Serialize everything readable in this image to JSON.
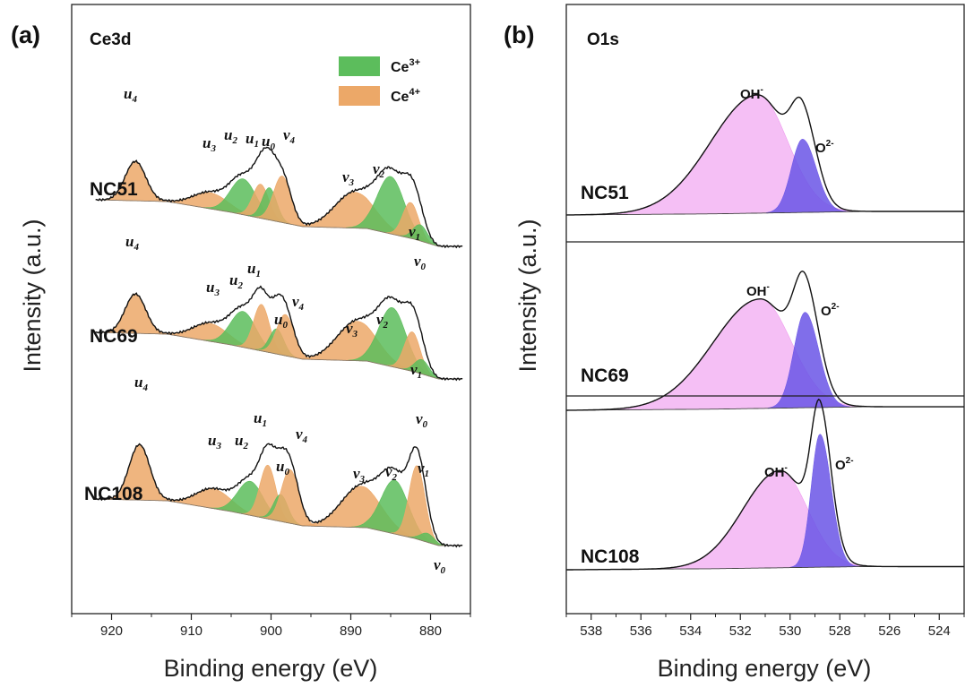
{
  "colors": {
    "ce3": "#5cbd5c",
    "ce4": "#eca868",
    "oh": "#ec8aec",
    "o2": "#6a55e6",
    "envelope": "#111111"
  },
  "chart_data": [
    {
      "type": "area",
      "panel_letter": "(a)",
      "title": "Ce3d",
      "xlabel": "Binding energy (eV)",
      "ylabel": "Intensity (a.u.)",
      "xlim": [
        925,
        875
      ],
      "x_reversed": true,
      "xticks": [
        "920",
        "910",
        "900",
        "890",
        "880"
      ],
      "xtick_values": [
        920,
        910,
        900,
        890,
        880
      ],
      "grid": false,
      "legend": {
        "position": "top-right",
        "entries": [
          {
            "label": "Ce",
            "sup": "3+",
            "color_key": "ce3"
          },
          {
            "label": "Ce",
            "sup": "4+",
            "color_key": "ce4"
          }
        ]
      },
      "spectra": [
        {
          "name": "NC51",
          "offset": 100,
          "background": [
            [
              922,
              2
            ],
            [
              913,
              0
            ],
            [
              905,
              -12
            ],
            [
              896,
              -28
            ],
            [
              888,
              -30
            ],
            [
              882,
              -42
            ],
            [
              879,
              -50
            ],
            [
              876,
              -50
            ]
          ],
          "components": [
            {
              "label": "u4",
              "species": "ce4",
              "center": 917,
              "height": 44,
              "width": 1.3
            },
            {
              "label": "u3",
              "species": "ce4",
              "center": 907.6,
              "height": 18,
              "width": 2.2
            },
            {
              "label": "u2",
              "species": "ce3",
              "center": 903.5,
              "height": 40,
              "width": 1.6
            },
            {
              "label": "u1",
              "species": "ce4",
              "center": 901.3,
              "height": 38,
              "width": 1.0
            },
            {
              "label": "u0",
              "species": "ce3",
              "center": 900.2,
              "height": 36,
              "width": 0.9
            },
            {
              "label": "v4",
              "species": "ce4",
              "center": 898.6,
              "height": 52,
              "width": 1.1
            },
            {
              "label": "v3",
              "species": "ce4",
              "center": 889.5,
              "height": 40,
              "width": 2.5
            },
            {
              "label": "v2",
              "species": "ce3",
              "center": 885.0,
              "height": 64,
              "width": 1.7
            },
            {
              "label": "v1",
              "species": "ce4",
              "center": 882.5,
              "height": 40,
              "width": 1.0
            },
            {
              "label": "v0",
              "species": "ce3",
              "center": 881.3,
              "height": 18,
              "width": 0.9
            }
          ]
        },
        {
          "name": "NC69",
          "offset": 0,
          "background": [
            [
              922,
              2
            ],
            [
              913,
              0
            ],
            [
              905,
              -12
            ],
            [
              896,
              -28
            ],
            [
              888,
              -30
            ],
            [
              882,
              -42
            ],
            [
              879,
              -50
            ],
            [
              876,
              -50
            ]
          ],
          "components": [
            {
              "label": "u4",
              "species": "ce4",
              "center": 917,
              "height": 44,
              "width": 1.3
            },
            {
              "label": "u3",
              "species": "ce4",
              "center": 907.6,
              "height": 20,
              "width": 2.2
            },
            {
              "label": "u2",
              "species": "ce3",
              "center": 903.5,
              "height": 40,
              "width": 1.6
            },
            {
              "label": "u1",
              "species": "ce4",
              "center": 901.2,
              "height": 52,
              "width": 1.0
            },
            {
              "label": "u0",
              "species": "ce3",
              "center": 899.3,
              "height": 28,
              "width": 0.9
            },
            {
              "label": "v4",
              "species": "ce4",
              "center": 898.2,
              "height": 46,
              "width": 1.1
            },
            {
              "label": "v3",
              "species": "ce4",
              "center": 889.2,
              "height": 44,
              "width": 2.5
            },
            {
              "label": "v2",
              "species": "ce3",
              "center": 884.8,
              "height": 66,
              "width": 1.7
            },
            {
              "label": "v1",
              "species": "ce4",
              "center": 882.3,
              "height": 44,
              "width": 1.0
            },
            {
              "label": "v0",
              "species": "ce3",
              "center": 881.1,
              "height": 16,
              "width": 0.9
            }
          ]
        },
        {
          "name": "NC108",
          "offset": -100,
          "background": [
            [
              922,
              2
            ],
            [
              913,
              0
            ],
            [
              905,
              -12
            ],
            [
              896,
              -28
            ],
            [
              888,
              -30
            ],
            [
              882,
              -42
            ],
            [
              879,
              -50
            ],
            [
              876,
              -50
            ]
          ],
          "components": [
            {
              "label": "u4",
              "species": "ce4",
              "center": 916.5,
              "height": 62,
              "width": 1.3
            },
            {
              "label": "u3",
              "species": "ce4",
              "center": 907.2,
              "height": 22,
              "width": 2.2
            },
            {
              "label": "u2",
              "species": "ce3",
              "center": 902.6,
              "height": 38,
              "width": 1.6
            },
            {
              "label": "u1",
              "species": "ce4",
              "center": 900.4,
              "height": 60,
              "width": 1.0
            },
            {
              "label": "u0",
              "species": "ce3",
              "center": 898.8,
              "height": 30,
              "width": 0.9
            },
            {
              "label": "v4",
              "species": "ce4",
              "center": 897.6,
              "height": 60,
              "width": 1.1
            },
            {
              "label": "v3",
              "species": "ce4",
              "center": 888.7,
              "height": 46,
              "width": 2.5
            },
            {
              "label": "v2",
              "species": "ce3",
              "center": 884.5,
              "height": 60,
              "width": 1.7
            },
            {
              "label": "v1",
              "species": "ce4",
              "center": 881.7,
              "height": 82,
              "width": 1.0
            },
            {
              "label": "v0",
              "species": "ce3",
              "center": 880.4,
              "height": 10,
              "width": 0.9
            }
          ]
        }
      ]
    },
    {
      "type": "area",
      "panel_letter": "(b)",
      "title": "O1s",
      "xlabel": "Binding energy (eV)",
      "ylabel": "Intensity (a.u.)",
      "xlim": [
        539,
        523
      ],
      "x_reversed": true,
      "xticks": [
        "538",
        "536",
        "534",
        "532",
        "530",
        "528",
        "526",
        "524"
      ],
      "xtick_values": [
        538,
        536,
        534,
        532,
        530,
        528,
        526,
        524
      ],
      "grid": false,
      "sub_panels": [
        {
          "name": "NC51",
          "background": [
            [
              539,
              0
            ],
            [
              533,
              1
            ],
            [
              530,
              2
            ],
            [
              527,
              3
            ],
            [
              523,
              3
            ]
          ],
          "components": [
            {
              "label": "OH",
              "sup": "-",
              "species": "oh",
              "center": 531.3,
              "height": 100,
              "width_left": 1.9,
              "width_right": 1.2
            },
            {
              "label": "O",
              "sup": "2-",
              "species": "o2",
              "center": 529.5,
              "height": 62,
              "width_left": 0.45,
              "width_right": 0.55
            }
          ]
        },
        {
          "name": "NC69",
          "background": [
            [
              539,
              0
            ],
            [
              533,
              1
            ],
            [
              530,
              2
            ],
            [
              527,
              3
            ],
            [
              523,
              3
            ]
          ],
          "components": [
            {
              "label": "OH",
              "sup": "-",
              "species": "oh",
              "center": 531.2,
              "height": 94,
              "width_left": 1.9,
              "width_right": 1.25
            },
            {
              "label": "O",
              "sup": "2-",
              "species": "o2",
              "center": 529.4,
              "height": 82,
              "width_left": 0.45,
              "width_right": 0.55
            }
          ]
        },
        {
          "name": "NC108",
          "background": [
            [
              539,
              0
            ],
            [
              533,
              1
            ],
            [
              530,
              2
            ],
            [
              527,
              3
            ],
            [
              523,
              3
            ]
          ],
          "components": [
            {
              "label": "OH",
              "sup": "-",
              "species": "oh",
              "center": 530.4,
              "height": 92,
              "width_left": 1.5,
              "width_right": 1.1
            },
            {
              "label": "O",
              "sup": "2-",
              "species": "o2",
              "center": 528.8,
              "height": 126,
              "width_left": 0.35,
              "width_right": 0.45
            }
          ]
        }
      ]
    }
  ]
}
